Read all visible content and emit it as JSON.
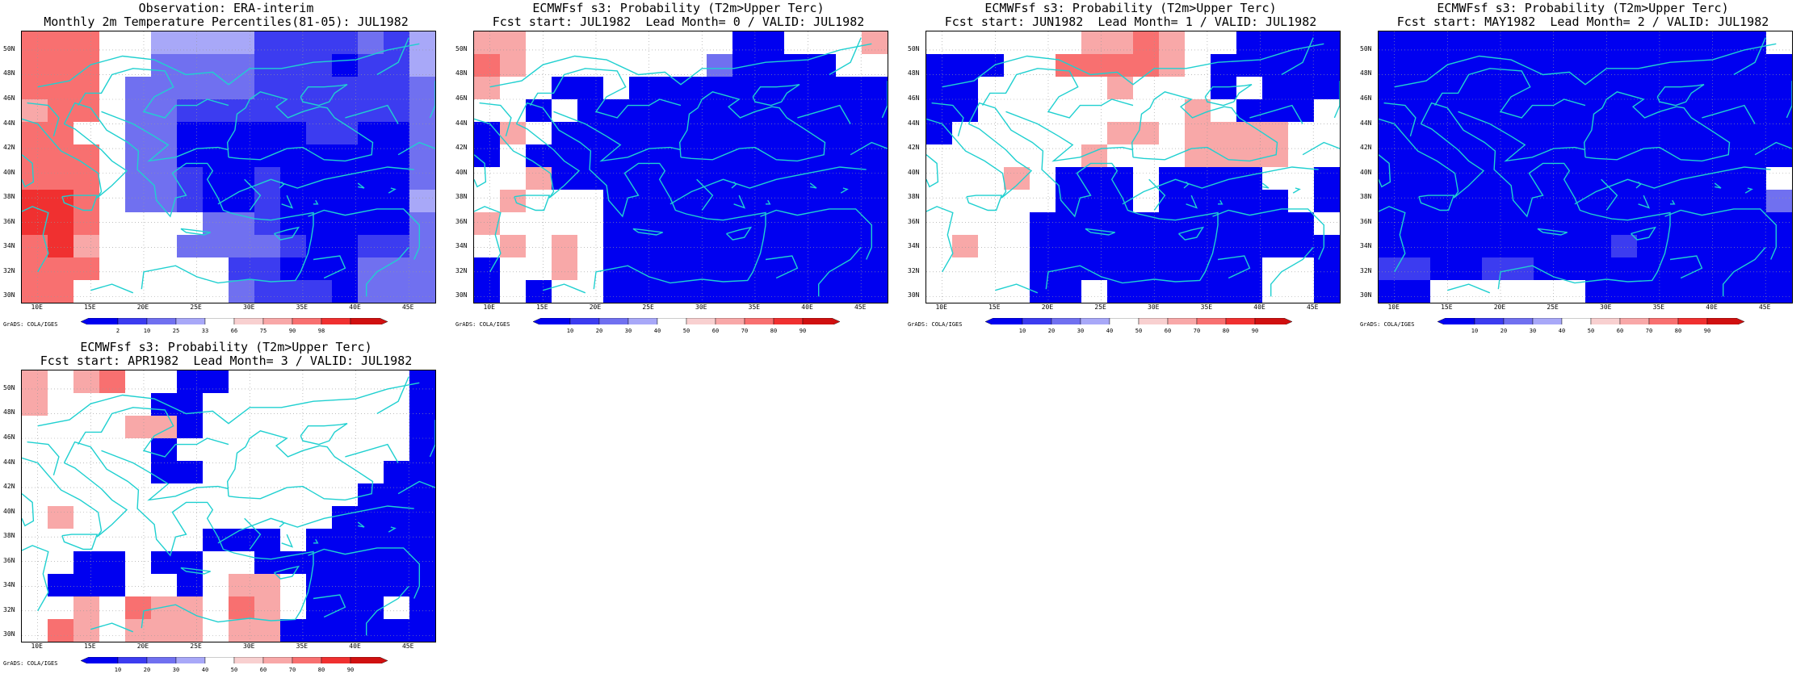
{
  "panels": [
    {
      "title1": "Observation: ERA-interim",
      "title2": "Monthly 2m Temperature Percentiles(81-05): JUL1982",
      "colorbar": [
        "2",
        "10",
        "25",
        "33",
        "66",
        "75",
        "90",
        "98"
      ],
      "cells": [
        [
          "r3",
          "r3",
          "r3",
          "w",
          "w",
          "b1",
          "b1",
          "b1",
          "b1",
          "b3",
          "b3",
          "b3",
          "b3",
          "b2",
          "b3",
          "b1"
        ],
        [
          "r3",
          "r3",
          "r3",
          "w",
          "w",
          "b2",
          "b2",
          "b2",
          "b2",
          "b3",
          "b3",
          "b3",
          "b4",
          "b3",
          "b3",
          "b1"
        ],
        [
          "r3",
          "r3",
          "r3",
          "w",
          "b2",
          "b2",
          "b2",
          "b2",
          "b2",
          "b3",
          "b3",
          "b3",
          "b3",
          "b3",
          "b3",
          "b2"
        ],
        [
          "r2",
          "r3",
          "r3",
          "w",
          "b2",
          "b2",
          "b3",
          "b3",
          "b3",
          "b3",
          "b3",
          "b3",
          "b3",
          "b3",
          "b3",
          "b2"
        ],
        [
          "r3",
          "r3",
          "w",
          "w",
          "b2",
          "b2",
          "b4",
          "b4",
          "b4",
          "b4",
          "b4",
          "b3",
          "b3",
          "b4",
          "b4",
          "b2"
        ],
        [
          "r3",
          "r3",
          "r3",
          "w",
          "b2",
          "b2",
          "b4",
          "b4",
          "b4",
          "b4",
          "b4",
          "b4",
          "b4",
          "b4",
          "b4",
          "b2"
        ],
        [
          "r3",
          "r3",
          "r3",
          "w",
          "b2",
          "b2",
          "b3",
          "b4",
          "b4",
          "b3",
          "b4",
          "b4",
          "b4",
          "b4",
          "b4",
          "b2"
        ],
        [
          "r4",
          "r4",
          "r3",
          "w",
          "b2",
          "b2",
          "b3",
          "b4",
          "b4",
          "b3",
          "b4",
          "b4",
          "b4",
          "b4",
          "b4",
          "b1"
        ],
        [
          "r4",
          "r4",
          "r3",
          "w",
          "w",
          "w",
          "w",
          "b2",
          "b2",
          "b3",
          "b4",
          "b4",
          "b4",
          "b4",
          "b4",
          "b2"
        ],
        [
          "r3",
          "r4",
          "r2",
          "w",
          "w",
          "w",
          "b2",
          "b2",
          "b2",
          "b2",
          "b3",
          "b4",
          "b4",
          "b3",
          "b3",
          "b2"
        ],
        [
          "r3",
          "r3",
          "r3",
          "w",
          "w",
          "w",
          "w",
          "w",
          "b3",
          "b3",
          "b4",
          "b4",
          "b4",
          "b2",
          "b2",
          "b2"
        ],
        [
          "r3",
          "r3",
          "w",
          "w",
          "w",
          "w",
          "w",
          "w",
          "b2",
          "b3",
          "b3",
          "b3",
          "b4",
          "b2",
          "b2",
          "b2"
        ]
      ]
    },
    {
      "title1": "ECMWFsf s3: Probability (T2m>Upper Terc)",
      "title2": "Fcst start: JUL1982  Lead Month= 0 / VALID: JUL1982",
      "colorbar": [
        "10",
        "20",
        "30",
        "40",
        "50",
        "60",
        "70",
        "80",
        "90"
      ],
      "cells": [
        [
          "r2",
          "r2",
          "w",
          "w",
          "w",
          "w",
          "w",
          "w",
          "w",
          "w",
          "b4",
          "b4",
          "w",
          "w",
          "w",
          "r2"
        ],
        [
          "r3",
          "r2",
          "w",
          "w",
          "w",
          "w",
          "w",
          "w",
          "w",
          "b2",
          "b4",
          "b4",
          "b4",
          "b4",
          "w",
          "w"
        ],
        [
          "r2",
          "w",
          "w",
          "b4",
          "b4",
          "w",
          "b4",
          "b4",
          "b4",
          "b4",
          "b4",
          "b4",
          "b4",
          "b4",
          "b4",
          "b4"
        ],
        [
          "w",
          "w",
          "b4",
          "w",
          "b4",
          "b4",
          "b4",
          "b4",
          "b4",
          "b4",
          "b4",
          "b4",
          "b4",
          "b4",
          "b4",
          "b4"
        ],
        [
          "b4",
          "r2",
          "w",
          "b4",
          "b4",
          "b4",
          "b4",
          "b4",
          "b4",
          "b4",
          "b4",
          "b4",
          "b4",
          "b4",
          "b4",
          "b4"
        ],
        [
          "b4",
          "w",
          "b4",
          "b4",
          "b4",
          "b4",
          "b4",
          "b4",
          "b4",
          "b4",
          "b4",
          "b4",
          "b4",
          "b4",
          "b4",
          "b4"
        ],
        [
          "w",
          "w",
          "r2",
          "b4",
          "b4",
          "b4",
          "b4",
          "b4",
          "b4",
          "b4",
          "b4",
          "b4",
          "b4",
          "b4",
          "b4",
          "b4"
        ],
        [
          "w",
          "r2",
          "w",
          "w",
          "w",
          "b4",
          "b4",
          "b4",
          "b4",
          "b4",
          "b4",
          "b4",
          "b4",
          "b4",
          "b4",
          "b4"
        ],
        [
          "r2",
          "w",
          "w",
          "w",
          "w",
          "b4",
          "b4",
          "b4",
          "b4",
          "b4",
          "b4",
          "b4",
          "b4",
          "b4",
          "b4",
          "b4"
        ],
        [
          "w",
          "r2",
          "w",
          "r2",
          "w",
          "b4",
          "b4",
          "b4",
          "b4",
          "b4",
          "b4",
          "b4",
          "b4",
          "b4",
          "b4",
          "b4"
        ],
        [
          "b4",
          "w",
          "w",
          "r2",
          "w",
          "b4",
          "b4",
          "b4",
          "b4",
          "b4",
          "b4",
          "b4",
          "b4",
          "b4",
          "b4",
          "b4"
        ],
        [
          "b4",
          "w",
          "b4",
          "w",
          "w",
          "b4",
          "b4",
          "b4",
          "b4",
          "b4",
          "b4",
          "b4",
          "b4",
          "b4",
          "b4",
          "b4"
        ]
      ]
    },
    {
      "title1": "ECMWFsf s3: Probability (T2m>Upper Terc)",
      "title2": "Fcst start: JUN1982  Lead Month= 1 / VALID: JUL1982",
      "colorbar": [
        "10",
        "20",
        "30",
        "40",
        "50",
        "60",
        "70",
        "80",
        "90"
      ],
      "cells": [
        [
          "w",
          "w",
          "w",
          "w",
          "w",
          "w",
          "r2",
          "r2",
          "r3",
          "r2",
          "w",
          "w",
          "b4",
          "b4",
          "b4",
          "b4"
        ],
        [
          "b4",
          "b4",
          "b4",
          "w",
          "w",
          "r3",
          "r3",
          "r3",
          "r3",
          "r2",
          "w",
          "b4",
          "b4",
          "b4",
          "b4",
          "b4"
        ],
        [
          "b4",
          "b4",
          "w",
          "w",
          "w",
          "w",
          "w",
          "r2",
          "w",
          "w",
          "w",
          "b4",
          "w",
          "b4",
          "b4",
          "b4"
        ],
        [
          "b4",
          "b4",
          "w",
          "w",
          "w",
          "w",
          "w",
          "w",
          "w",
          "w",
          "r2",
          "w",
          "b4",
          "b4",
          "b4",
          "w"
        ],
        [
          "b4",
          "w",
          "w",
          "w",
          "w",
          "w",
          "w",
          "r2",
          "r2",
          "w",
          "r2",
          "r2",
          "r2",
          "r2",
          "w",
          "w"
        ],
        [
          "w",
          "w",
          "w",
          "w",
          "w",
          "w",
          "r2",
          "w",
          "w",
          "w",
          "r2",
          "r2",
          "r2",
          "r2",
          "w",
          "w"
        ],
        [
          "w",
          "w",
          "w",
          "r2",
          "w",
          "b4",
          "b4",
          "b4",
          "w",
          "b4",
          "b4",
          "b4",
          "b4",
          "w",
          "w",
          "b4"
        ],
        [
          "w",
          "w",
          "w",
          "w",
          "w",
          "b4",
          "b4",
          "b4",
          "w",
          "b4",
          "b4",
          "b4",
          "b4",
          "b4",
          "w",
          "b4"
        ],
        [
          "w",
          "w",
          "w",
          "w",
          "b4",
          "b4",
          "b4",
          "b4",
          "b4",
          "b4",
          "b4",
          "b4",
          "b4",
          "b4",
          "b4",
          "w"
        ],
        [
          "w",
          "r2",
          "w",
          "w",
          "b4",
          "b4",
          "b4",
          "b4",
          "b4",
          "b4",
          "b4",
          "b4",
          "b4",
          "b4",
          "b4",
          "b4"
        ],
        [
          "w",
          "w",
          "w",
          "w",
          "b4",
          "b4",
          "b4",
          "b4",
          "b4",
          "b4",
          "b4",
          "b4",
          "b4",
          "w",
          "w",
          "b4"
        ],
        [
          "w",
          "w",
          "w",
          "w",
          "b4",
          "b4",
          "w",
          "b4",
          "b4",
          "b4",
          "b4",
          "b4",
          "b4",
          "w",
          "w",
          "b4"
        ]
      ]
    },
    {
      "title1": "ECMWFsf s3: Probability (T2m>Upper Terc)",
      "title2": "Fcst start: MAY1982  Lead Month= 2 / VALID: JUL1982",
      "colorbar": [
        "10",
        "20",
        "30",
        "40",
        "50",
        "60",
        "70",
        "80",
        "90"
      ],
      "cells": [
        [
          "b4",
          "b4",
          "b4",
          "b4",
          "b4",
          "b4",
          "b4",
          "b4",
          "b4",
          "b4",
          "b4",
          "b4",
          "b4",
          "b4",
          "b4",
          "w"
        ],
        [
          "b4",
          "b4",
          "b4",
          "b4",
          "b4",
          "b4",
          "b4",
          "b4",
          "b4",
          "b4",
          "b4",
          "b4",
          "b4",
          "b4",
          "b4",
          "b4"
        ],
        [
          "b4",
          "b4",
          "b4",
          "b4",
          "b4",
          "b4",
          "b4",
          "b4",
          "b4",
          "b4",
          "b4",
          "b4",
          "b4",
          "b4",
          "b4",
          "b4"
        ],
        [
          "b4",
          "b4",
          "b4",
          "b4",
          "b4",
          "b4",
          "b4",
          "b4",
          "b4",
          "b4",
          "b4",
          "b4",
          "b4",
          "b4",
          "b4",
          "b4"
        ],
        [
          "b4",
          "b4",
          "b4",
          "b4",
          "b4",
          "b4",
          "b4",
          "b4",
          "b4",
          "b4",
          "b4",
          "b4",
          "b4",
          "b4",
          "b4",
          "b4"
        ],
        [
          "b4",
          "b4",
          "b4",
          "b4",
          "b4",
          "b4",
          "b4",
          "b4",
          "b4",
          "b4",
          "b4",
          "b4",
          "b4",
          "b4",
          "b4",
          "b4"
        ],
        [
          "b4",
          "b4",
          "b4",
          "b4",
          "b4",
          "b4",
          "b4",
          "b4",
          "b4",
          "b4",
          "b4",
          "b4",
          "b4",
          "b4",
          "b4",
          "w"
        ],
        [
          "b4",
          "b4",
          "b4",
          "b4",
          "b4",
          "b4",
          "b4",
          "b4",
          "b4",
          "b4",
          "b4",
          "b4",
          "b4",
          "b4",
          "b4",
          "b2"
        ],
        [
          "b4",
          "b4",
          "b4",
          "b4",
          "b4",
          "b4",
          "b4",
          "b4",
          "b4",
          "b4",
          "b4",
          "b4",
          "b4",
          "b4",
          "b4",
          "b4"
        ],
        [
          "b4",
          "b4",
          "b4",
          "b4",
          "b4",
          "b4",
          "b4",
          "b4",
          "b4",
          "b3",
          "b4",
          "b4",
          "b4",
          "b4",
          "b4",
          "b4"
        ],
        [
          "b3",
          "b3",
          "b4",
          "b4",
          "b3",
          "b3",
          "b4",
          "b4",
          "b4",
          "b4",
          "b4",
          "b4",
          "b4",
          "b4",
          "b4",
          "b4"
        ],
        [
          "b4",
          "b4",
          "w",
          "w",
          "w",
          "w",
          "w",
          "w",
          "b4",
          "b4",
          "b4",
          "b4",
          "b4",
          "b4",
          "b4",
          "b4"
        ]
      ]
    },
    {
      "title1": "ECMWFsf s3: Probability (T2m>Upper Terc)",
      "title2": "Fcst start: APR1982  Lead Month= 3 / VALID: JUL1982",
      "colorbar": [
        "10",
        "20",
        "30",
        "40",
        "50",
        "60",
        "70",
        "80",
        "90"
      ],
      "cells": [
        [
          "r2",
          "w",
          "r2",
          "r3",
          "w",
          "w",
          "b4",
          "b4",
          "w",
          "w",
          "w",
          "w",
          "w",
          "w",
          "w",
          "b4"
        ],
        [
          "r2",
          "w",
          "w",
          "w",
          "w",
          "b4",
          "b4",
          "w",
          "w",
          "w",
          "w",
          "w",
          "w",
          "w",
          "w",
          "b4"
        ],
        [
          "w",
          "w",
          "w",
          "w",
          "r2",
          "r2",
          "b4",
          "w",
          "w",
          "w",
          "w",
          "w",
          "w",
          "w",
          "w",
          "b4"
        ],
        [
          "w",
          "w",
          "w",
          "w",
          "w",
          "b4",
          "w",
          "w",
          "w",
          "w",
          "w",
          "w",
          "w",
          "w",
          "w",
          "b4"
        ],
        [
          "w",
          "w",
          "w",
          "w",
          "w",
          "b4",
          "b4",
          "w",
          "w",
          "w",
          "w",
          "w",
          "w",
          "w",
          "b4",
          "b4"
        ],
        [
          "w",
          "w",
          "w",
          "w",
          "w",
          "w",
          "w",
          "w",
          "w",
          "w",
          "w",
          "w",
          "w",
          "b4",
          "b4",
          "b4"
        ],
        [
          "w",
          "r2",
          "w",
          "w",
          "w",
          "w",
          "w",
          "w",
          "w",
          "w",
          "w",
          "w",
          "b4",
          "b4",
          "b4",
          "b4"
        ],
        [
          "w",
          "w",
          "w",
          "w",
          "w",
          "w",
          "w",
          "b4",
          "b4",
          "b4",
          "w",
          "b4",
          "b4",
          "b4",
          "b4",
          "b4"
        ],
        [
          "w",
          "w",
          "b4",
          "b4",
          "w",
          "b4",
          "b4",
          "w",
          "w",
          "b4",
          "b4",
          "b4",
          "b4",
          "b4",
          "b4",
          "b4"
        ],
        [
          "w",
          "b4",
          "b4",
          "b4",
          "w",
          "w",
          "b4",
          "w",
          "r2",
          "r2",
          "w",
          "b4",
          "b4",
          "b4",
          "b4",
          "b4"
        ],
        [
          "w",
          "w",
          "r2",
          "w",
          "r3",
          "r2",
          "r2",
          "w",
          "r3",
          "r2",
          "w",
          "b4",
          "b4",
          "b4",
          "w",
          "b4"
        ],
        [
          "w",
          "r3",
          "r2",
          "w",
          "r2",
          "r2",
          "r2",
          "w",
          "r2",
          "r2",
          "b4",
          "b4",
          "b4",
          "b4",
          "b4",
          "b4"
        ]
      ]
    }
  ],
  "palette": {
    "r4": "#f03030",
    "r3": "#f87070",
    "r2": "#f8a8a8",
    "r1": "#f8d0d0",
    "w": "#ffffff",
    "b1": "#a8a8f8",
    "b2": "#7070f0",
    "b3": "#3c3cf0",
    "b4": "#0000f0",
    "coast": "#20d0d0"
  },
  "lat_labels": [
    "50N",
    "48N",
    "46N",
    "44N",
    "42N",
    "40N",
    "38N",
    "36N",
    "34N",
    "32N",
    "30N"
  ],
  "lon_labels": [
    "10E",
    "15E",
    "20E",
    "25E",
    "30E",
    "35E",
    "40E",
    "45E"
  ],
  "credit": "GrADS: COLA/IGES"
}
